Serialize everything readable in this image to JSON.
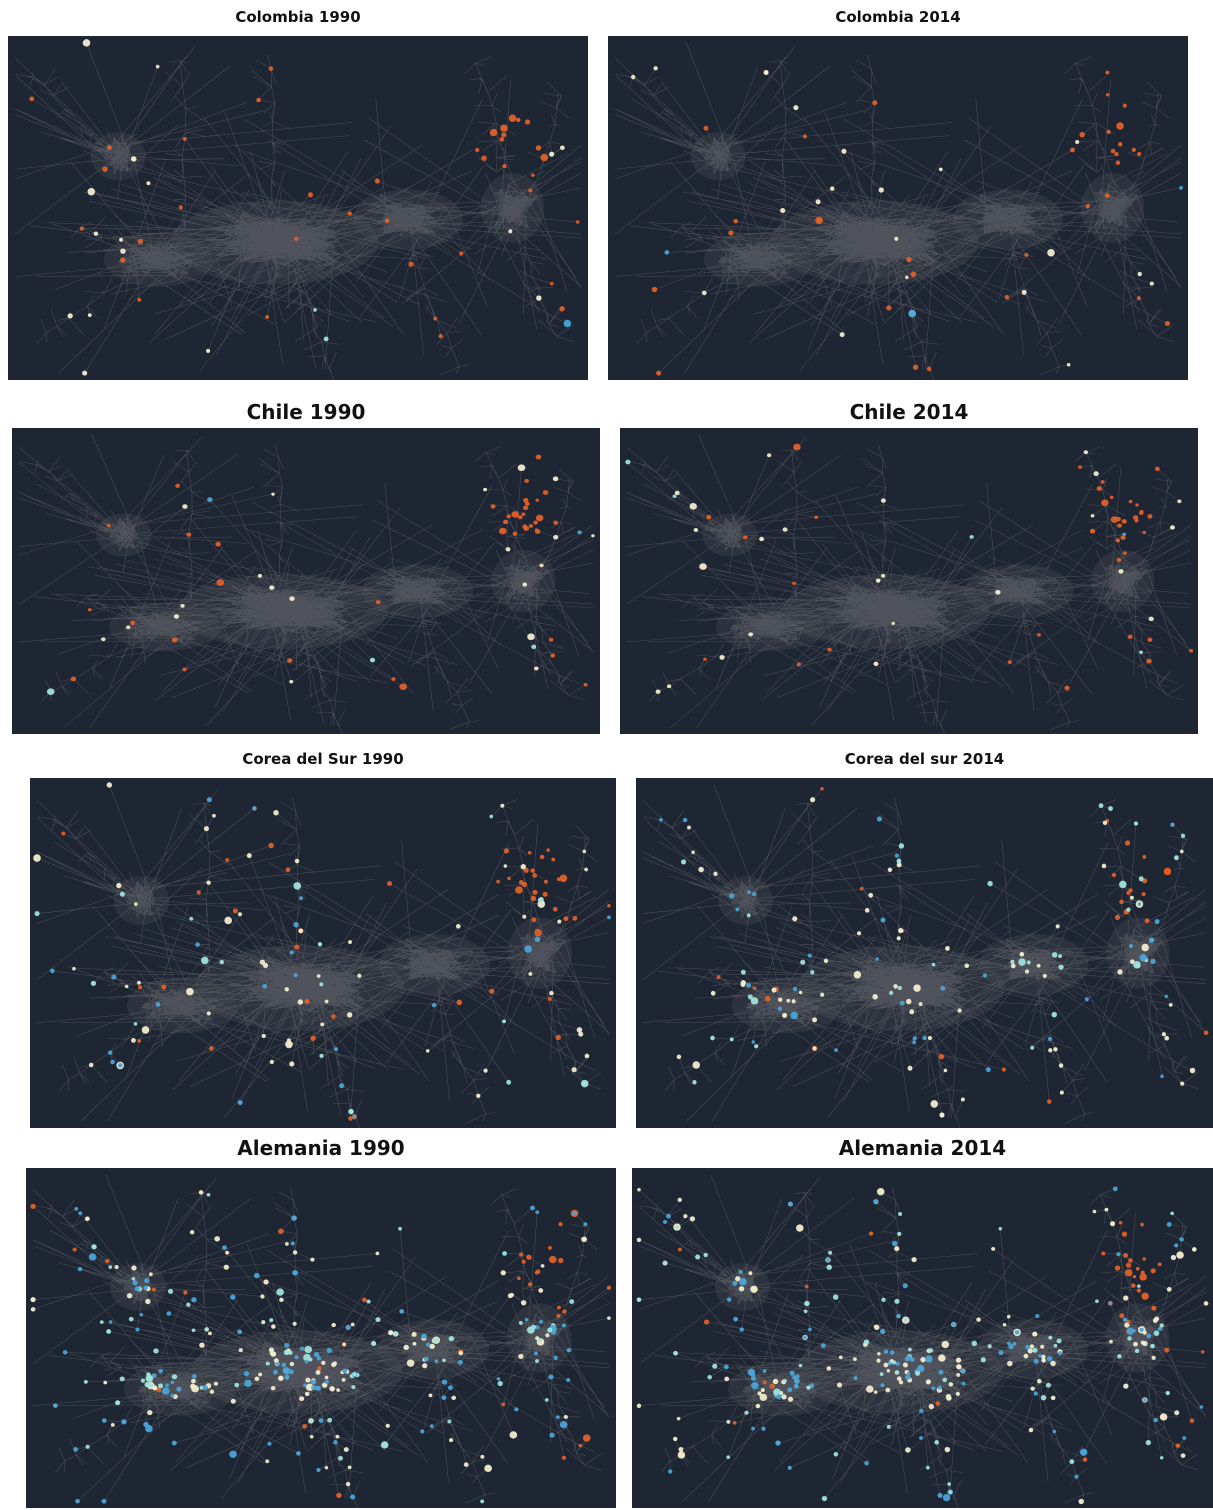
{
  "panels": [
    {
      "title": "Colombia 1990",
      "profile": {
        "orange": 40,
        "cream": 16,
        "blue": 3,
        "hub": 0
      }
    },
    {
      "title": "Colombia 2014",
      "profile": {
        "orange": 34,
        "cream": 22,
        "blue": 3,
        "hub": 0
      }
    },
    {
      "title": "Chile 1990",
      "profile": {
        "orange": 45,
        "cream": 20,
        "blue": 5,
        "hub": 0
      }
    },
    {
      "title": "Chile 2014",
      "profile": {
        "orange": 40,
        "cream": 25,
        "blue": 5,
        "hub": 0
      }
    },
    {
      "title": "Corea del Sur 1990",
      "profile": {
        "orange": 50,
        "cream": 60,
        "blue": 40,
        "hub": 0.2
      }
    },
    {
      "title": "Corea del sur 2014",
      "profile": {
        "orange": 25,
        "cream": 80,
        "blue": 70,
        "hub": 0.5
      }
    },
    {
      "title": "Alemania 1990",
      "profile": {
        "orange": 35,
        "cream": 140,
        "blue": 170,
        "hub": 0.8
      }
    },
    {
      "title": "Alemania 2014",
      "profile": {
        "orange": 45,
        "cream": 140,
        "blue": 170,
        "hub": 0.8
      }
    }
  ],
  "colors": {
    "background": "#1e2533",
    "edge": "#5c5f66",
    "cluster": "#4b4d52",
    "orange": "#e0602a",
    "cream": "#f1eccf",
    "blue": "#4aa3d6",
    "teal": "#9fe1db"
  }
}
